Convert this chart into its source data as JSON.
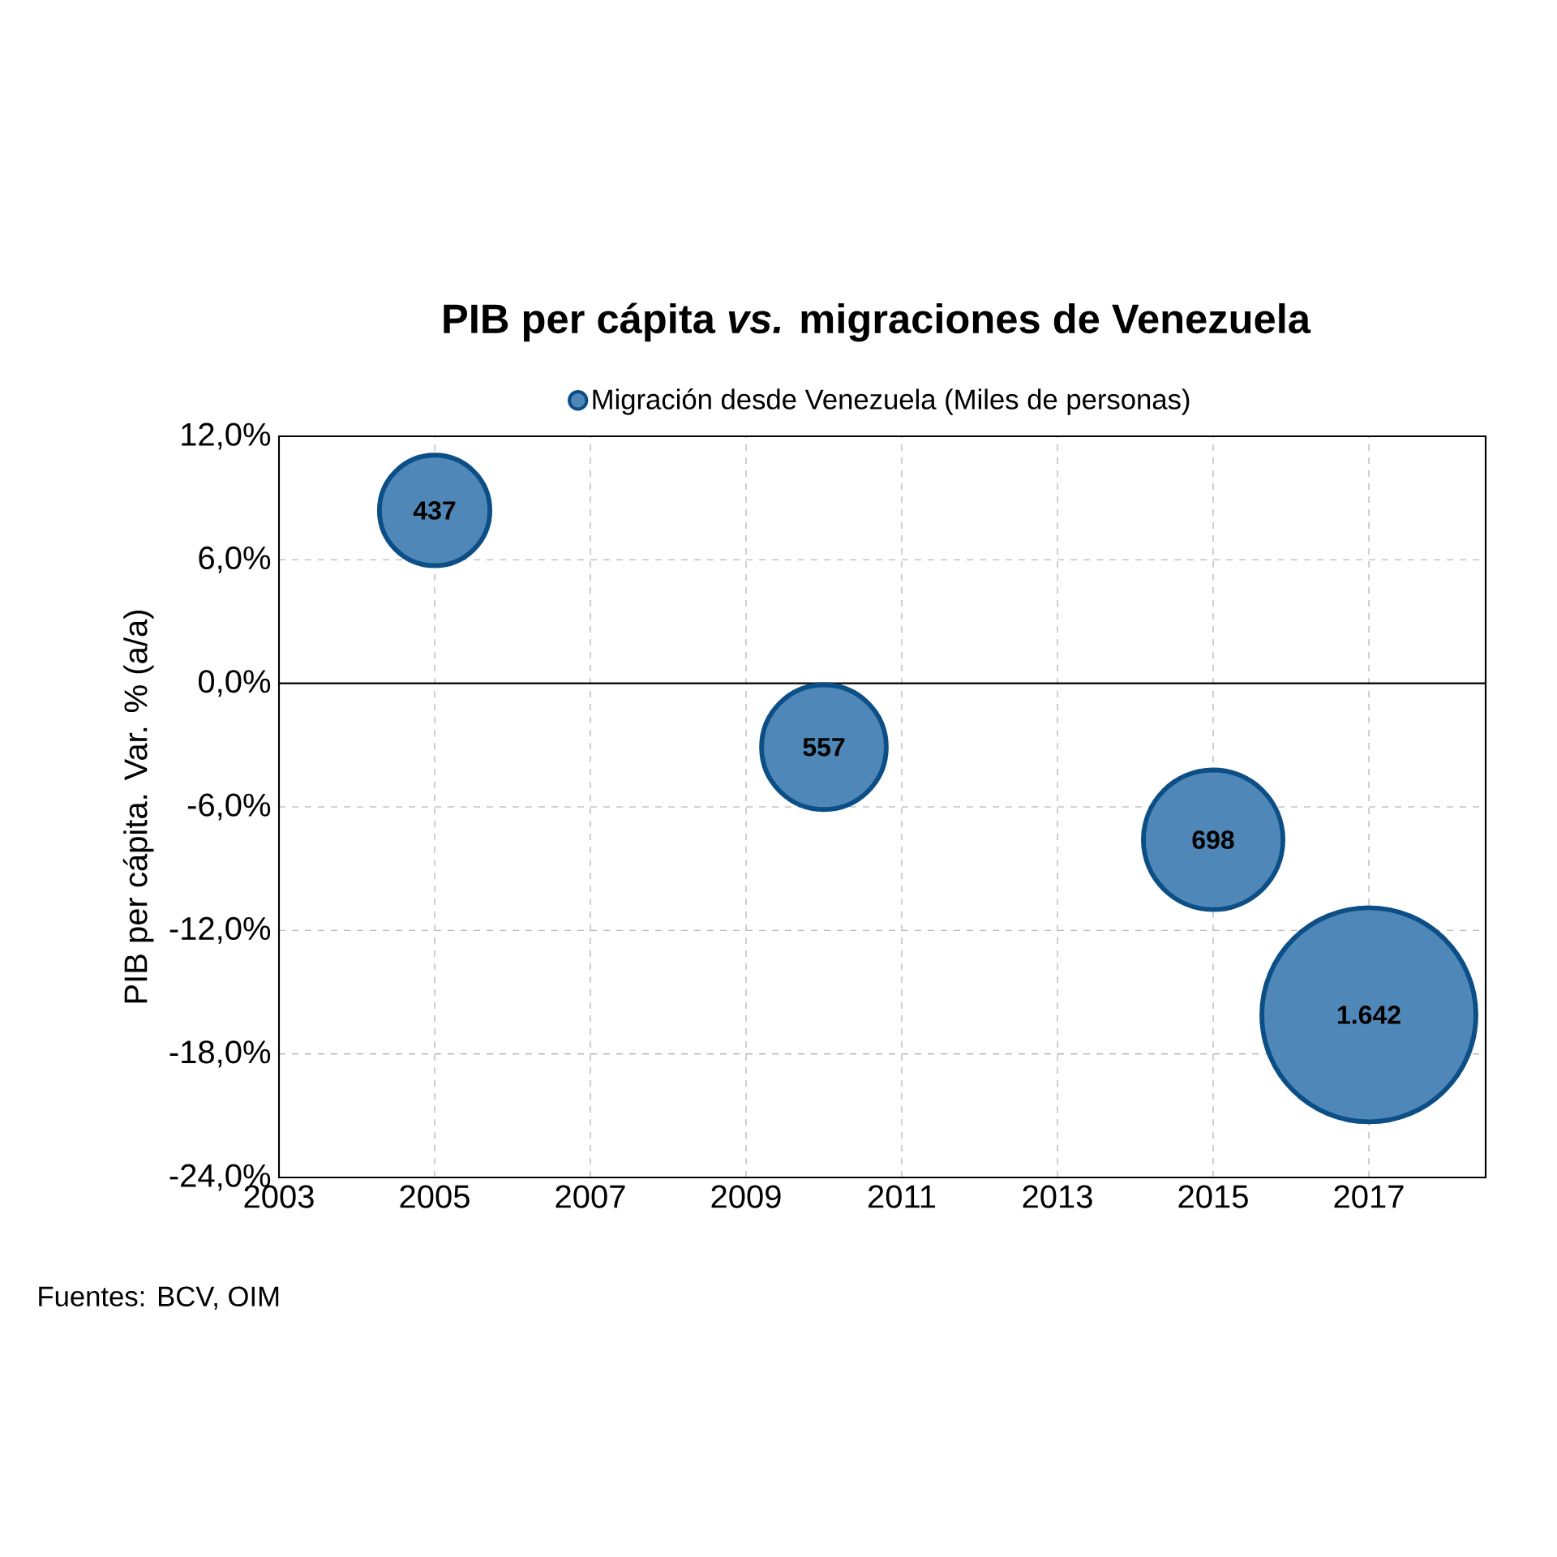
{
  "chart_data": {
    "type": "bubble",
    "title": "PIB per cápita *vs.* migraciones de Venezuela",
    "ylabel": "PIB per cápita. Var. % (a/a)",
    "annotations": [
      "Fuentes: BCV, OIM"
    ],
    "x": [
      2005,
      2010,
      2015,
      2017
    ],
    "series": [
      {
        "name": "Migración desde Venezuela (Miles de personas)",
        "color": "#4f88b8",
        "values": [
          8.4,
          -3.1,
          -7.6,
          -16.1
        ],
        "sizes": [
          437,
          557,
          698,
          1642
        ],
        "value_labels": [
          "437",
          "557",
          "698",
          "1.642"
        ]
      }
    ],
    "xlim": [
      2003,
      2018.5
    ],
    "xticks": [
      2003,
      2005,
      2007,
      2009,
      2011,
      2013,
      2015,
      2017
    ],
    "ylim": [
      -24,
      12
    ],
    "yticks": [
      {
        "value": -24,
        "label": "-24,0%"
      },
      {
        "value": -18,
        "label": "-18,0%"
      },
      {
        "value": -12,
        "label": "-12,0%"
      },
      {
        "value": -6,
        "label": "-6,0%"
      },
      {
        "value": 0,
        "label": "0,0%"
      },
      {
        "value": 6,
        "label": "6,0%"
      },
      {
        "value": 12,
        "label": "12,0%"
      }
    ],
    "ref_lines": [
      {
        "axis": "y",
        "value": 0,
        "color": "#000000"
      }
    ],
    "grid": true,
    "legend": "top"
  }
}
